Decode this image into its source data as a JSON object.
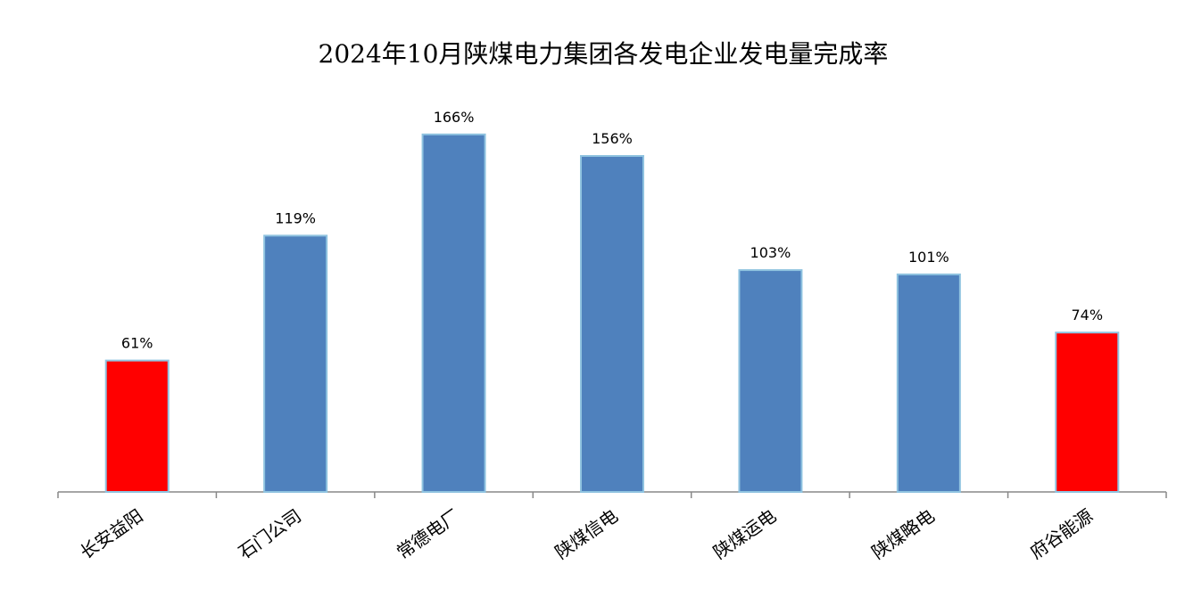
{
  "chart_data": {
    "type": "bar",
    "title": "2024年10月陕煤电力集团各发电企业发电量完成率",
    "categories": [
      "长安益阳",
      "石门公司",
      "常德电厂",
      "陕煤信电",
      "陕煤运电",
      "陕煤略电",
      "府谷能源"
    ],
    "values": [
      61,
      119,
      166,
      156,
      103,
      101,
      74
    ],
    "value_labels": [
      "61%",
      "119%",
      "166%",
      "156%",
      "103%",
      "101%",
      "74%"
    ],
    "colors": [
      "#ff0000",
      "#4f81bd",
      "#4f81bd",
      "#4f81bd",
      "#4f81bd",
      "#4f81bd",
      "#ff0000"
    ],
    "ylim": [
      0,
      180
    ]
  }
}
